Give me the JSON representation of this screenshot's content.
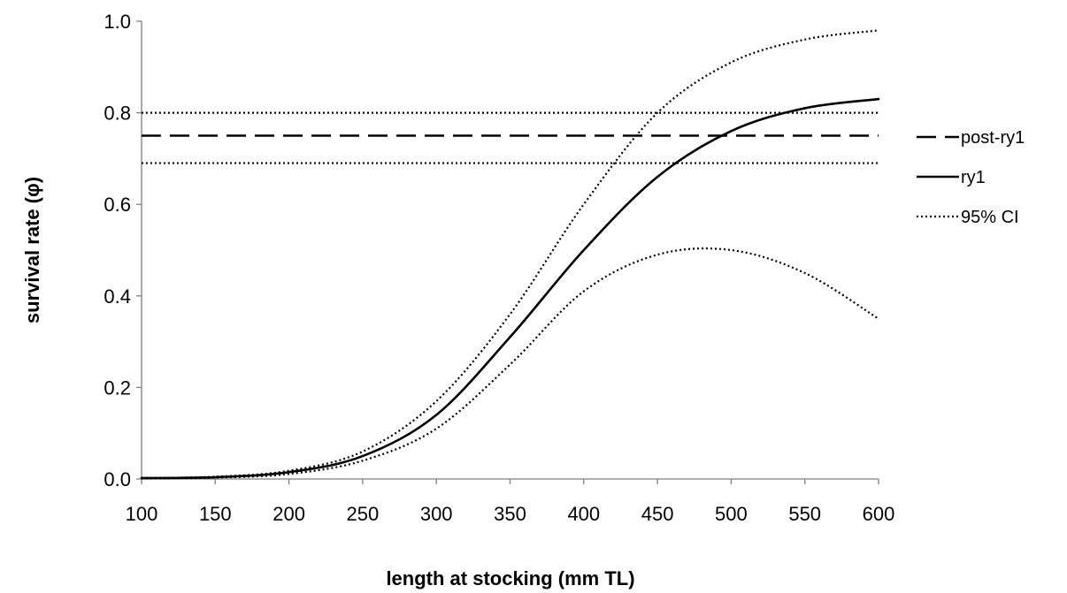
{
  "chart_data": {
    "type": "line",
    "title": "",
    "xlabel": "length at stocking (mm TL)",
    "ylabel": "survival rate (φ)",
    "xlim": [
      100,
      600
    ],
    "ylim": [
      0.0,
      1.0
    ],
    "x_ticks": [
      "100",
      "150",
      "200",
      "250",
      "300",
      "350",
      "400",
      "450",
      "500",
      "550",
      "600"
    ],
    "y_ticks": [
      "0.0",
      "0.2",
      "0.4",
      "0.6",
      "0.8",
      "1.0"
    ],
    "grid": false,
    "legend_position": "right",
    "x": [
      100,
      150,
      200,
      250,
      300,
      350,
      400,
      450,
      500,
      550,
      600
    ],
    "series": [
      {
        "name": "post-ry1",
        "style": "dashed",
        "values": [
          0.75,
          0.75,
          0.75,
          0.75,
          0.75,
          0.75,
          0.75,
          0.75,
          0.75,
          0.75,
          0.75
        ]
      },
      {
        "name": "ry1",
        "style": "solid",
        "values": [
          0.002,
          0.004,
          0.015,
          0.05,
          0.14,
          0.31,
          0.5,
          0.66,
          0.76,
          0.81,
          0.83
        ]
      },
      {
        "name": "95% CI",
        "style": "dotted",
        "values": [
          0.002,
          0.005,
          0.018,
          0.06,
          0.17,
          0.36,
          0.6,
          0.8,
          0.91,
          0.96,
          0.98
        ]
      },
      {
        "name": "",
        "style": "dotted",
        "values": [
          0.001,
          0.003,
          0.011,
          0.04,
          0.11,
          0.25,
          0.41,
          0.49,
          0.5,
          0.45,
          0.35
        ]
      },
      {
        "name": "",
        "style": "dotted",
        "values": [
          0.8,
          0.8,
          0.8,
          0.8,
          0.8,
          0.8,
          0.8,
          0.8,
          0.8,
          0.8,
          0.8
        ]
      },
      {
        "name": "",
        "style": "dotted",
        "values": [
          0.69,
          0.69,
          0.69,
          0.69,
          0.69,
          0.69,
          0.69,
          0.69,
          0.69,
          0.69,
          0.69
        ]
      }
    ],
    "legend": [
      "post-ry1",
      "ry1",
      "95% CI"
    ]
  }
}
